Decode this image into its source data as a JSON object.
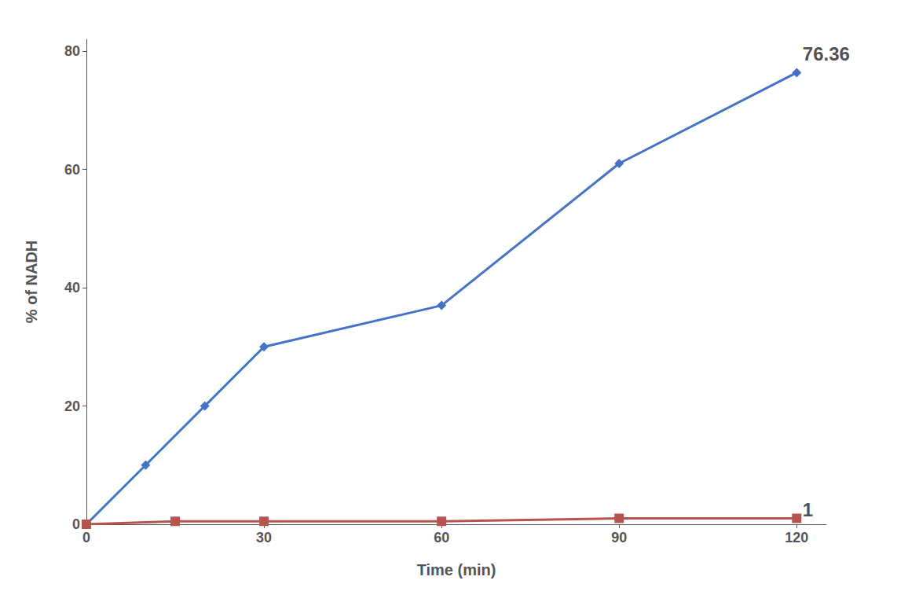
{
  "chart_data": {
    "type": "line",
    "xlabel": "Time (min)",
    "ylabel": "% of NADH",
    "series": [
      {
        "x": [
          0,
          10,
          20,
          30,
          60,
          90,
          120
        ],
        "values": [
          0,
          10,
          20,
          30,
          37,
          61,
          76.36
        ],
        "color": "#4472C4",
        "marker": "diamond"
      },
      {
        "x": [
          0,
          15,
          30,
          60,
          90,
          120
        ],
        "values": [
          0,
          0.5,
          0.5,
          0.5,
          1,
          1
        ],
        "color": "#B85450",
        "marker": "square"
      }
    ],
    "annotations": [
      {
        "text": "76.36",
        "x": 121,
        "y": 78
      },
      {
        "text": "1",
        "x": 121,
        "y": 2.5
      }
    ],
    "xlim": [
      0,
      125
    ],
    "ylim": [
      0,
      82
    ],
    "xticks": [
      0,
      30,
      60,
      90,
      120
    ],
    "yticks": [
      0,
      20,
      40,
      60,
      80
    ],
    "grid": false
  }
}
